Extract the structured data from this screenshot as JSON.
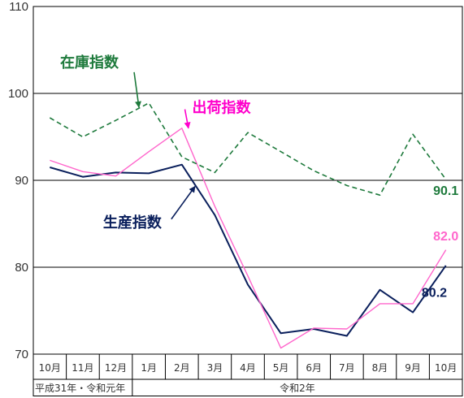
{
  "chart_data": {
    "type": "line",
    "categories": [
      "10月",
      "11月",
      "12月",
      "1月",
      "2月",
      "3月",
      "4月",
      "5月",
      "6月",
      "7月",
      "8月",
      "9月",
      "10月"
    ],
    "category_groups": [
      {
        "label": "平成31年・令和元年",
        "start": 0,
        "end": 2
      },
      {
        "label": "令和2年",
        "start": 3,
        "end": 12
      }
    ],
    "ylim": [
      70,
      110
    ],
    "yticks": [
      70,
      80,
      90,
      100,
      110
    ],
    "gridlines_y": [
      80,
      90,
      100
    ],
    "series": [
      {
        "name": "生産指数",
        "color": "#0a1f5c",
        "style": "solid",
        "values": [
          91.5,
          90.4,
          90.9,
          90.8,
          91.8,
          86.0,
          78.0,
          72.4,
          72.9,
          72.1,
          77.4,
          74.8,
          80.2
        ]
      },
      {
        "name": "出荷指数",
        "color": "#ff66cc",
        "style": "solid",
        "values": [
          92.3,
          91.0,
          90.5,
          93.3,
          96.0,
          87.0,
          79.0,
          70.7,
          73.0,
          72.9,
          75.8,
          75.8,
          82.0
        ]
      },
      {
        "name": "在庫指数",
        "color": "#1e7a3c",
        "style": "dashed",
        "values": [
          97.2,
          95.0,
          96.9,
          98.9,
          92.7,
          90.9,
          95.5,
          93.3,
          91.1,
          89.4,
          88.3,
          95.3,
          90.1
        ]
      }
    ],
    "annotations": [
      {
        "series": "在庫指数",
        "text": "在庫指数",
        "color": "#1e7a3c",
        "text_x": 1.2,
        "text_y": 103.0,
        "arrow_to_x": 2.7,
        "arrow_to_y": 98.4
      },
      {
        "series": "出荷指数",
        "text": "出荷指数",
        "color": "#ff00cc",
        "text_x": 5.2,
        "text_y": 97.8,
        "arrow_to_x": 4.2,
        "arrow_to_y": 96.0
      },
      {
        "series": "生産指数",
        "text": "生産指数",
        "color": "#0a1f5c",
        "text_x": 2.5,
        "text_y": 84.6,
        "arrow_to_x": 4.4,
        "arrow_to_y": 89.3
      }
    ],
    "end_labels": [
      {
        "text": "90.1",
        "color": "#1e7a3c",
        "x": 12.0,
        "y": 88.3
      },
      {
        "text": "82.0",
        "color": "#ff66cc",
        "x": 12.0,
        "y": 83.1
      },
      {
        "text": "80.2",
        "color": "#0a1f5c",
        "x": 11.65,
        "y": 76.6
      }
    ]
  }
}
